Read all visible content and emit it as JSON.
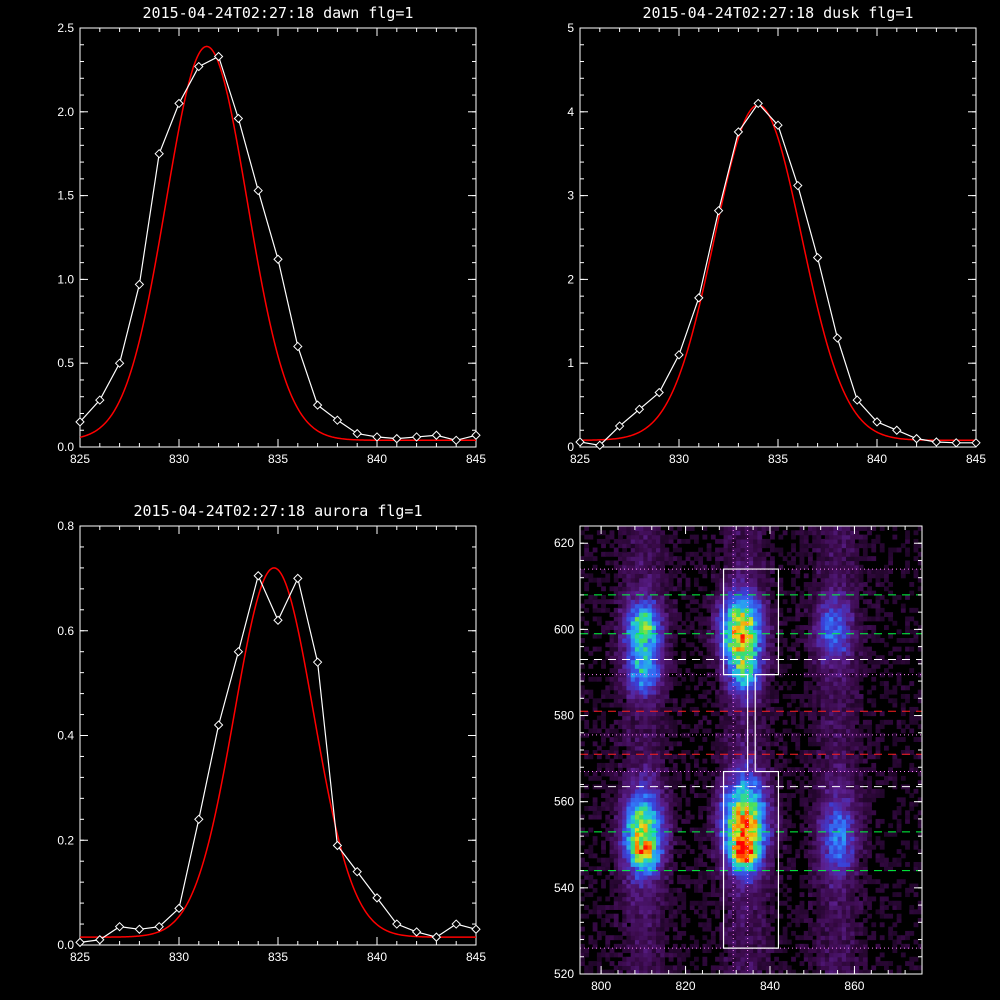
{
  "chart_data": [
    {
      "id": "dawn",
      "type": "line",
      "title": "2015-04-24T02:27:18 dawn flg=1",
      "xlim": [
        825,
        845
      ],
      "ylim": [
        0,
        2.5
      ],
      "x_ticks": [
        825,
        830,
        835,
        840,
        845
      ],
      "y_ticks": [
        0.0,
        0.5,
        1.0,
        1.5,
        2.0,
        2.5
      ],
      "y_tick_labels": [
        "0.0",
        "0.5",
        "1.0",
        "1.5",
        "2.0",
        "2.5"
      ],
      "series": [
        {
          "style": "measured",
          "color": "#ffffff",
          "marker": "diamond",
          "x": [
            825,
            826,
            827,
            828,
            829,
            830,
            831,
            832,
            833,
            834,
            835,
            836,
            837,
            838,
            839,
            840,
            841,
            842,
            843,
            844,
            845
          ],
          "y": [
            0.15,
            0.28,
            0.5,
            0.97,
            1.75,
            2.05,
            2.27,
            2.33,
            1.96,
            1.53,
            1.12,
            0.6,
            0.25,
            0.16,
            0.08,
            0.06,
            0.05,
            0.06,
            0.07,
            0.04,
            0.07
          ]
        },
        {
          "style": "gaussian-fit",
          "color": "#ff0000",
          "amp": 2.35,
          "center": 831.4,
          "sigma": 2.05,
          "base": 0.04
        }
      ]
    },
    {
      "id": "dusk",
      "type": "line",
      "title": "2015-04-24T02:27:18 dusk flg=1",
      "xlim": [
        825,
        845
      ],
      "ylim": [
        0,
        5
      ],
      "x_ticks": [
        825,
        830,
        835,
        840,
        845
      ],
      "y_ticks": [
        0,
        1,
        2,
        3,
        4,
        5
      ],
      "y_tick_labels": [
        "0",
        "1",
        "2",
        "3",
        "4",
        "5"
      ],
      "series": [
        {
          "style": "measured",
          "color": "#ffffff",
          "marker": "diamond",
          "x": [
            825,
            826,
            827,
            828,
            829,
            830,
            831,
            832,
            833,
            834,
            835,
            836,
            837,
            838,
            839,
            840,
            841,
            842,
            843,
            844,
            845
          ],
          "y": [
            0.06,
            0.02,
            0.25,
            0.45,
            0.65,
            1.1,
            1.78,
            2.82,
            3.76,
            4.1,
            3.84,
            3.12,
            2.26,
            1.3,
            0.56,
            0.3,
            0.2,
            0.1,
            0.06,
            0.05,
            0.05
          ]
        },
        {
          "style": "gaussian-fit",
          "color": "#ff0000",
          "amp": 4.0,
          "center": 834.0,
          "sigma": 2.2,
          "base": 0.08
        }
      ]
    },
    {
      "id": "aurora",
      "type": "line",
      "title": "2015-04-24T02:27:18 aurora flg=1",
      "xlim": [
        825,
        845
      ],
      "ylim": [
        0,
        0.8
      ],
      "x_ticks": [
        825,
        830,
        835,
        840,
        845
      ],
      "y_ticks": [
        0.0,
        0.2,
        0.4,
        0.6,
        0.8
      ],
      "y_tick_labels": [
        "0.0",
        "0.2",
        "0.4",
        "0.6",
        "0.8"
      ],
      "series": [
        {
          "style": "measured",
          "color": "#ffffff",
          "marker": "diamond",
          "x": [
            825,
            826,
            827,
            828,
            829,
            830,
            831,
            832,
            833,
            834,
            835,
            836,
            837,
            838,
            839,
            840,
            841,
            842,
            843,
            844,
            845
          ],
          "y": [
            0.005,
            0.01,
            0.035,
            0.03,
            0.035,
            0.07,
            0.24,
            0.42,
            0.56,
            0.705,
            0.62,
            0.7,
            0.54,
            0.19,
            0.14,
            0.09,
            0.04,
            0.025,
            0.015,
            0.04,
            0.03
          ]
        },
        {
          "style": "gaussian-fit",
          "color": "#ff0000",
          "amp": 0.705,
          "center": 834.8,
          "sigma": 2.0,
          "base": 0.015
        }
      ]
    },
    {
      "id": "image",
      "type": "heatmap",
      "title": "",
      "xlim": [
        795,
        876
      ],
      "ylim": [
        520,
        624
      ],
      "x_ticks": [
        800,
        820,
        840,
        860
      ],
      "y_ticks": [
        520,
        540,
        560,
        580,
        600,
        620
      ],
      "colormap": [
        "#000000",
        "#3a0a4a",
        "#5b1f8f",
        "#3b3fd6",
        "#2f86ff",
        "#20d0d0",
        "#40e060",
        "#e8e020",
        "#ff8000",
        "#ff0000"
      ],
      "blobs": [
        {
          "cx": 810,
          "cy": 601,
          "sx": 3.0,
          "sy": 4.0,
          "amp": 0.5
        },
        {
          "cx": 810,
          "cy": 591,
          "sx": 3.0,
          "sy": 4.0,
          "amp": 0.38
        },
        {
          "cx": 810,
          "cy": 553,
          "sx": 3.2,
          "sy": 6.5,
          "amp": 0.62
        },
        {
          "cx": 810,
          "cy": 548,
          "sx": 2.0,
          "sy": 2.5,
          "amp": 0.25
        },
        {
          "cx": 833,
          "cy": 600,
          "sx": 3.3,
          "sy": 5.5,
          "amp": 0.72
        },
        {
          "cx": 834,
          "cy": 590,
          "sx": 2.5,
          "sy": 4.0,
          "amp": 0.35
        },
        {
          "cx": 834,
          "cy": 555,
          "sx": 3.6,
          "sy": 7.0,
          "amp": 0.75
        },
        {
          "cx": 834,
          "cy": 548,
          "sx": 1.8,
          "sy": 2.3,
          "amp": 0.55
        },
        {
          "cx": 855,
          "cy": 600,
          "sx": 3.0,
          "sy": 5.0,
          "amp": 0.28
        },
        {
          "cx": 856,
          "cy": 552,
          "sx": 3.0,
          "sy": 6.0,
          "amp": 0.3
        }
      ],
      "stripe_centers_x": [
        810,
        834,
        856
      ],
      "overlays": {
        "dotted_vertical_x": [
          831.3,
          834.7
        ],
        "dotted_horizontal_y": [
          526,
          567,
          589.5,
          614,
          575.5
        ],
        "dashed_green_y": [
          608,
          599,
          553,
          544
        ],
        "dashed_white_y": [
          593,
          563.5
        ],
        "dashed_red_y": [
          581,
          571
        ],
        "box_outline": {
          "x0": 829,
          "x1": 842,
          "y_top": 614,
          "y_bottom": 526,
          "gap_top": 589.5,
          "gap_bottom": 567,
          "neck_x0": 834.7,
          "neck_x1": 836.5
        },
        "colors": {
          "green": "#00ff40",
          "white": "#ffffff",
          "red": "#ff2020"
        }
      }
    }
  ]
}
